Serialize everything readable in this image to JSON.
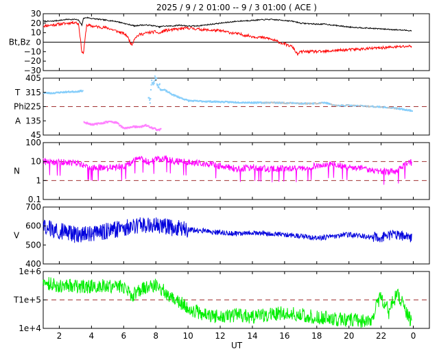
{
  "title": "2025 /  9 /  2   01:00 -- 9 /  3   01:00 ( ACE )",
  "xlabel": "UT",
  "x_ticks": [
    "2",
    "4",
    "6",
    "8",
    "10",
    "12",
    "14",
    "16",
    "18",
    "20",
    "22",
    "0"
  ],
  "colors": {
    "bt": "#000000",
    "bz": "#ff0000",
    "temperature_phi": "#87cefa",
    "phi_gray": "#c0c0c0",
    "theta": "#ff80ff",
    "density": "#ff00ff",
    "speed": "#0000dd",
    "proton_temp": "#00ee00",
    "ref_line": "#a03030"
  },
  "chart_data": [
    {
      "type": "line",
      "panel": "magnetic-field",
      "ylabel": "Bt,Bz",
      "ylim": [
        -30,
        30
      ],
      "y_ticks": [
        "30",
        "20",
        "10",
        "0",
        "−10",
        "−20",
        "−30"
      ],
      "x": [
        1,
        1.5,
        2,
        2.5,
        3,
        3.2,
        3.4,
        3.5,
        3.7,
        4,
        4.5,
        5,
        5.5,
        6,
        6.2,
        6.5,
        6.7,
        7,
        7.5,
        8,
        8.2,
        8.5,
        9,
        9.5,
        10,
        10.5,
        11,
        12,
        13,
        14,
        15,
        16,
        16.5,
        16.8,
        17,
        18,
        18.5,
        19,
        20,
        21,
        22,
        23,
        24
      ],
      "series": [
        {
          "values": [
            22,
            22,
            23,
            24,
            24,
            23,
            18,
            25,
            26,
            25,
            24,
            23,
            22,
            20,
            19,
            18,
            17,
            18,
            18,
            17,
            16,
            17,
            17,
            18,
            17,
            17,
            18,
            20,
            22,
            23,
            24,
            23,
            22,
            21,
            20,
            19,
            19,
            18,
            16,
            15,
            14,
            13,
            12
          ]
        },
        {
          "values": [
            17,
            18,
            19,
            20,
            21,
            19,
            -10,
            -12,
            18,
            17,
            16,
            15,
            12,
            9,
            7,
            -3,
            5,
            8,
            10,
            11,
            9,
            12,
            13,
            14,
            15,
            14,
            13,
            12,
            9,
            6,
            4,
            -2,
            -5,
            -13,
            -10,
            -10,
            -10,
            -9,
            -8,
            -7,
            -6,
            -5,
            -4
          ]
        }
      ]
    },
    {
      "type": "scatter",
      "panel": "angles",
      "ylabels": [
        "T",
        "Phi",
        "A"
      ],
      "ylim": [
        45,
        405
      ],
      "y_ticks": [
        "405",
        "315",
        "225",
        "135",
        "45"
      ],
      "reference_lines": [
        225
      ],
      "x_phi": [
        1,
        1.5,
        2,
        2.5,
        3,
        3.4,
        8.5,
        9,
        9.5,
        10,
        11,
        12,
        13,
        14,
        15,
        16,
        17,
        18,
        18.5,
        19,
        20,
        21,
        22,
        23,
        23.9
      ],
      "series": [
        {
          "values": [
            312,
            310,
            315,
            318,
            320,
            325,
            330,
            300,
            280,
            262,
            258,
            255,
            252,
            250,
            250,
            248,
            245,
            245,
            250,
            232,
            232,
            228,
            222,
            213,
            198
          ]
        },
        {
          "x": [
            3.5,
            4,
            4.5,
            5,
            5.5,
            5.8,
            6,
            6.5,
            7,
            7.3,
            7.6,
            7.9,
            8.1,
            8.3
          ],
          "values": [
            125,
            112,
            118,
            130,
            125,
            100,
            85,
            98,
            95,
            108,
            95,
            85,
            75,
            82
          ]
        },
        {
          "x": [
            7.5,
            7.6,
            7.7,
            7.8,
            7.9,
            8.0,
            8.1,
            8.2,
            8.3
          ],
          "values": [
            290,
            260,
            380,
            355,
            405,
            395,
            340,
            360,
            315
          ]
        }
      ]
    },
    {
      "type": "line",
      "panel": "density",
      "ylabel": "N",
      "yscale": "log",
      "ylim": [
        0.1,
        100
      ],
      "y_ticks": [
        "100",
        "10",
        "1",
        "0.1"
      ],
      "reference_lines": [
        10,
        1
      ],
      "x": [
        1,
        2,
        3,
        3.5,
        4,
        5,
        5.5,
        6,
        6.5,
        7,
        7.5,
        8,
        8.5,
        9,
        10,
        11,
        12,
        13,
        14,
        15,
        16,
        17,
        18,
        19,
        20,
        21,
        22,
        23,
        23.9
      ],
      "values": [
        10,
        9,
        9,
        6,
        5,
        4.5,
        5,
        5,
        9,
        16,
        9,
        12,
        15,
        11,
        9,
        8,
        6,
        4,
        5,
        4,
        4.5,
        4,
        6,
        7,
        5,
        4,
        3,
        3,
        9
      ]
    },
    {
      "type": "line",
      "panel": "speed",
      "ylabel": "V",
      "ylim": [
        400,
        700
      ],
      "y_ticks": [
        "700",
        "600",
        "500",
        "400"
      ],
      "x": [
        1,
        2,
        3,
        4,
        5,
        6,
        7,
        8,
        9,
        10,
        11,
        12,
        13,
        14,
        15,
        16,
        17,
        18,
        19,
        20,
        21,
        22,
        23,
        23.9
      ],
      "values": [
        600,
        575,
        555,
        560,
        575,
        590,
        605,
        610,
        590,
        580,
        575,
        565,
        560,
        565,
        560,
        555,
        545,
        535,
        545,
        555,
        545,
        540,
        555,
        535
      ]
    },
    {
      "type": "line",
      "panel": "proton-temperature",
      "ylabel": "T",
      "yscale": "log",
      "ylim": [
        10000,
        1000000
      ],
      "y_ticks": [
        "1e+6",
        "1e+5",
        "1e+4"
      ],
      "reference_lines": [
        100000
      ],
      "x": [
        1,
        2,
        3,
        4,
        5,
        6,
        6.5,
        7,
        7.5,
        8,
        8.5,
        9,
        9.5,
        10,
        10.5,
        11,
        12,
        13,
        14,
        15,
        16,
        17,
        18,
        19,
        20,
        21,
        21.5,
        22,
        22.5,
        23,
        23.5,
        23.9
      ],
      "values": [
        400000,
        320000,
        300000,
        300000,
        320000,
        280000,
        150000,
        200000,
        300000,
        350000,
        200000,
        110000,
        80000,
        50000,
        40000,
        30000,
        25000,
        30000,
        25000,
        30000,
        35000,
        30000,
        25000,
        22000,
        20000,
        18000,
        16000,
        120000,
        30000,
        150000,
        40000,
        15000
      ]
    }
  ]
}
